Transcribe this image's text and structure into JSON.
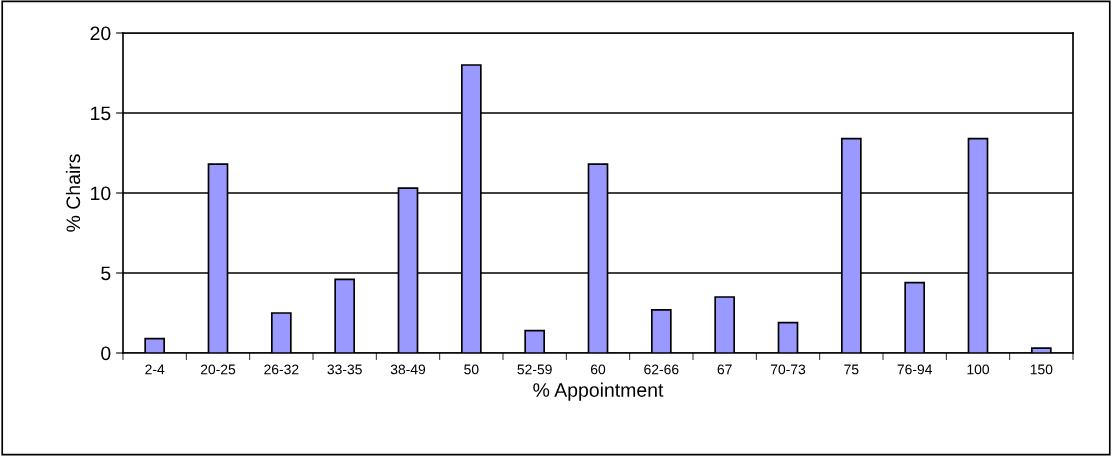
{
  "chart_data": {
    "type": "bar",
    "xlabel": "% Appointment",
    "ylabel": "% Chairs",
    "categories": [
      "2-4",
      "20-25",
      "26-32",
      "33-35",
      "38-49",
      "50",
      "52-59",
      "60",
      "62-66",
      "67",
      "70-73",
      "75",
      "76-94",
      "100",
      "150"
    ],
    "values": [
      0.9,
      11.8,
      2.5,
      4.6,
      10.3,
      18,
      1.4,
      11.8,
      2.7,
      3.5,
      1.9,
      13.4,
      4.4,
      13.4,
      0.3
    ],
    "color": "#9999ff",
    "ylim": [
      0,
      20
    ],
    "yticks": [
      0,
      5,
      10,
      15,
      20
    ],
    "grid": "y"
  }
}
